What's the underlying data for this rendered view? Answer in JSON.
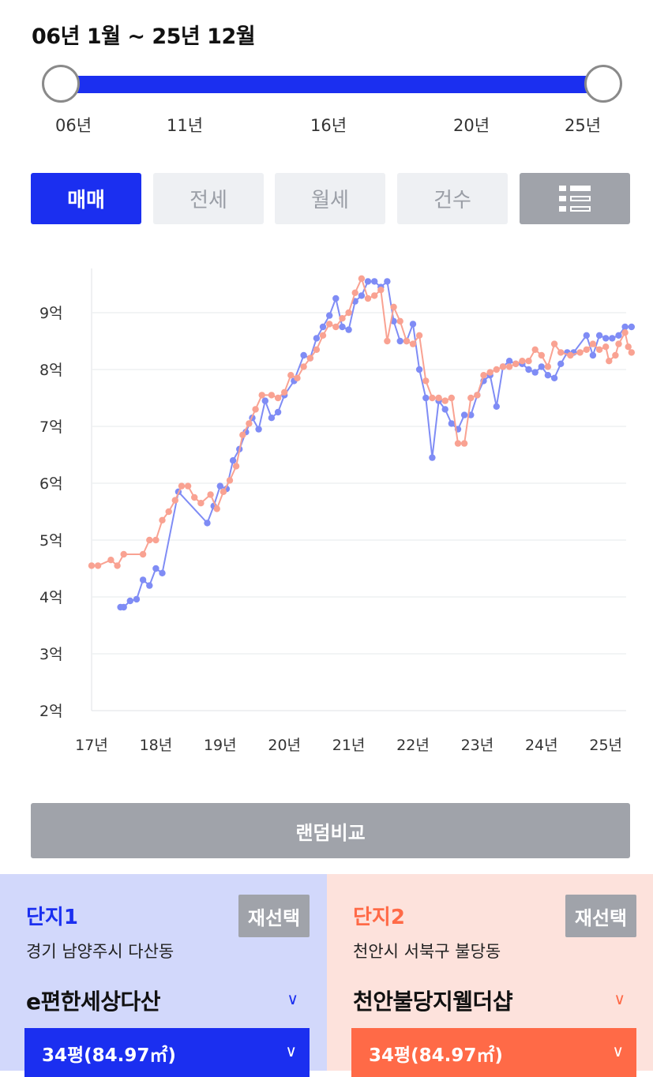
{
  "period": {
    "title": "06년 1월 ~ 25년 12월",
    "ticks": [
      "06년",
      "11년",
      "16년",
      "20년",
      "25년"
    ]
  },
  "tabs": [
    {
      "label": "매매",
      "active": true
    },
    {
      "label": "전세",
      "active": false
    },
    {
      "label": "월세",
      "active": false
    },
    {
      "label": "건수",
      "active": false
    }
  ],
  "list_toggle_icon": "list-icon",
  "colors": {
    "accent_blue": "#1b2ff0",
    "accent_orange": "#ff6a47",
    "series1": "#7f8cf5",
    "series2": "#f9a292"
  },
  "chart_data": {
    "type": "line",
    "y_unit": "억",
    "y_ticks": [
      "2억",
      "3억",
      "4억",
      "5억",
      "6억",
      "7억",
      "8억",
      "9억"
    ],
    "x_ticks": [
      "17년",
      "18년",
      "19년",
      "20년",
      "21년",
      "22년",
      "23년",
      "24년",
      "25년"
    ],
    "ylim": [
      2,
      9.8
    ],
    "xlim": [
      2017.0,
      2025.4
    ],
    "grid": true,
    "series": [
      {
        "color": "#7f8cf5",
        "points": [
          [
            2017.45,
            3.82
          ],
          [
            2017.5,
            3.82
          ],
          [
            2017.6,
            3.93
          ],
          [
            2017.7,
            3.96
          ],
          [
            2017.8,
            4.3
          ],
          [
            2017.9,
            4.2
          ],
          [
            2018.0,
            4.5
          ],
          [
            2018.1,
            4.42
          ],
          [
            2018.35,
            5.85
          ],
          [
            2018.8,
            5.3
          ],
          [
            2018.9,
            5.6
          ],
          [
            2019.0,
            5.95
          ],
          [
            2019.1,
            5.9
          ],
          [
            2019.2,
            6.4
          ],
          [
            2019.3,
            6.6
          ],
          [
            2019.4,
            6.9
          ],
          [
            2019.5,
            7.15
          ],
          [
            2019.6,
            6.95
          ],
          [
            2019.7,
            7.45
          ],
          [
            2019.8,
            7.15
          ],
          [
            2019.9,
            7.25
          ],
          [
            2020.0,
            7.55
          ],
          [
            2020.15,
            7.8
          ],
          [
            2020.3,
            8.25
          ],
          [
            2020.4,
            8.2
          ],
          [
            2020.5,
            8.55
          ],
          [
            2020.6,
            8.75
          ],
          [
            2020.7,
            8.95
          ],
          [
            2020.8,
            9.25
          ],
          [
            2020.9,
            8.75
          ],
          [
            2021.0,
            8.7
          ],
          [
            2021.1,
            9.2
          ],
          [
            2021.2,
            9.3
          ],
          [
            2021.3,
            9.55
          ],
          [
            2021.4,
            9.55
          ],
          [
            2021.5,
            9.45
          ],
          [
            2021.6,
            9.55
          ],
          [
            2021.7,
            8.85
          ],
          [
            2021.8,
            8.5
          ],
          [
            2021.9,
            8.5
          ],
          [
            2022.0,
            8.8
          ],
          [
            2022.1,
            8.0
          ],
          [
            2022.2,
            7.5
          ],
          [
            2022.3,
            6.45
          ],
          [
            2022.4,
            7.45
          ],
          [
            2022.5,
            7.3
          ],
          [
            2022.6,
            7.05
          ],
          [
            2022.7,
            6.95
          ],
          [
            2022.8,
            7.2
          ],
          [
            2022.9,
            7.2
          ],
          [
            2023.0,
            7.55
          ],
          [
            2023.1,
            7.8
          ],
          [
            2023.2,
            7.9
          ],
          [
            2023.3,
            7.35
          ],
          [
            2023.4,
            8.05
          ],
          [
            2023.5,
            8.15
          ],
          [
            2023.6,
            8.1
          ],
          [
            2023.7,
            8.1
          ],
          [
            2023.8,
            8.0
          ],
          [
            2023.9,
            7.95
          ],
          [
            2024.0,
            8.05
          ],
          [
            2024.1,
            7.9
          ],
          [
            2024.2,
            7.85
          ],
          [
            2024.3,
            8.1
          ],
          [
            2024.4,
            8.3
          ],
          [
            2024.5,
            8.3
          ],
          [
            2024.7,
            8.6
          ],
          [
            2024.8,
            8.25
          ],
          [
            2024.9,
            8.6
          ],
          [
            2025.0,
            8.55
          ],
          [
            2025.1,
            8.55
          ],
          [
            2025.2,
            8.6
          ],
          [
            2025.3,
            8.75
          ],
          [
            2025.4,
            8.75
          ]
        ]
      },
      {
        "color": "#f9a292",
        "points": [
          [
            2017.0,
            4.55
          ],
          [
            2017.1,
            4.55
          ],
          [
            2017.3,
            4.65
          ],
          [
            2017.4,
            4.55
          ],
          [
            2017.5,
            4.75
          ],
          [
            2017.8,
            4.75
          ],
          [
            2017.9,
            5.0
          ],
          [
            2018.0,
            5.0
          ],
          [
            2018.1,
            5.35
          ],
          [
            2018.2,
            5.5
          ],
          [
            2018.3,
            5.7
          ],
          [
            2018.4,
            5.95
          ],
          [
            2018.5,
            5.95
          ],
          [
            2018.6,
            5.75
          ],
          [
            2018.7,
            5.65
          ],
          [
            2018.85,
            5.8
          ],
          [
            2018.95,
            5.55
          ],
          [
            2019.05,
            5.85
          ],
          [
            2019.15,
            6.05
          ],
          [
            2019.25,
            6.3
          ],
          [
            2019.35,
            6.85
          ],
          [
            2019.45,
            7.05
          ],
          [
            2019.55,
            7.3
          ],
          [
            2019.65,
            7.55
          ],
          [
            2019.8,
            7.55
          ],
          [
            2019.9,
            7.5
          ],
          [
            2020.0,
            7.6
          ],
          [
            2020.1,
            7.9
          ],
          [
            2020.2,
            7.85
          ],
          [
            2020.3,
            8.05
          ],
          [
            2020.4,
            8.2
          ],
          [
            2020.5,
            8.35
          ],
          [
            2020.6,
            8.6
          ],
          [
            2020.7,
            8.8
          ],
          [
            2020.8,
            8.75
          ],
          [
            2020.9,
            8.9
          ],
          [
            2021.0,
            9.0
          ],
          [
            2021.1,
            9.35
          ],
          [
            2021.2,
            9.6
          ],
          [
            2021.3,
            9.25
          ],
          [
            2021.4,
            9.3
          ],
          [
            2021.5,
            9.4
          ],
          [
            2021.6,
            8.5
          ],
          [
            2021.7,
            9.1
          ],
          [
            2021.8,
            8.85
          ],
          [
            2021.9,
            8.5
          ],
          [
            2022.0,
            8.45
          ],
          [
            2022.1,
            8.6
          ],
          [
            2022.2,
            7.8
          ],
          [
            2022.3,
            7.5
          ],
          [
            2022.4,
            7.5
          ],
          [
            2022.5,
            7.45
          ],
          [
            2022.6,
            7.5
          ],
          [
            2022.7,
            6.7
          ],
          [
            2022.8,
            6.7
          ],
          [
            2022.9,
            7.5
          ],
          [
            2023.0,
            7.55
          ],
          [
            2023.1,
            7.9
          ],
          [
            2023.2,
            7.95
          ],
          [
            2023.3,
            8.0
          ],
          [
            2023.4,
            8.05
          ],
          [
            2023.5,
            8.05
          ],
          [
            2023.6,
            8.1
          ],
          [
            2023.7,
            8.15
          ],
          [
            2023.8,
            8.15
          ],
          [
            2023.9,
            8.35
          ],
          [
            2024.0,
            8.25
          ],
          [
            2024.1,
            8.05
          ],
          [
            2024.2,
            8.45
          ],
          [
            2024.3,
            8.3
          ],
          [
            2024.45,
            8.25
          ],
          [
            2024.6,
            8.3
          ],
          [
            2024.7,
            8.35
          ],
          [
            2024.8,
            8.45
          ],
          [
            2024.9,
            8.35
          ],
          [
            2025.0,
            8.4
          ],
          [
            2025.05,
            8.15
          ],
          [
            2025.15,
            8.25
          ],
          [
            2025.2,
            8.45
          ],
          [
            2025.3,
            8.65
          ],
          [
            2025.35,
            8.4
          ],
          [
            2025.4,
            8.3
          ]
        ]
      }
    ]
  },
  "random_compare_label": "랜덤비교",
  "complex1": {
    "label": "단지1",
    "reselect": "재선택",
    "address": "경기 남양주시 다산동",
    "name": "e편한세상다산",
    "size": "34평(84.97㎡)",
    "chevron": "∨"
  },
  "complex2": {
    "label": "단지2",
    "reselect": "재선택",
    "address": "천안시 서북구 불당동",
    "name": "천안불당지웰더샵",
    "size": "34평(84.97㎡)",
    "chevron": "∨"
  }
}
